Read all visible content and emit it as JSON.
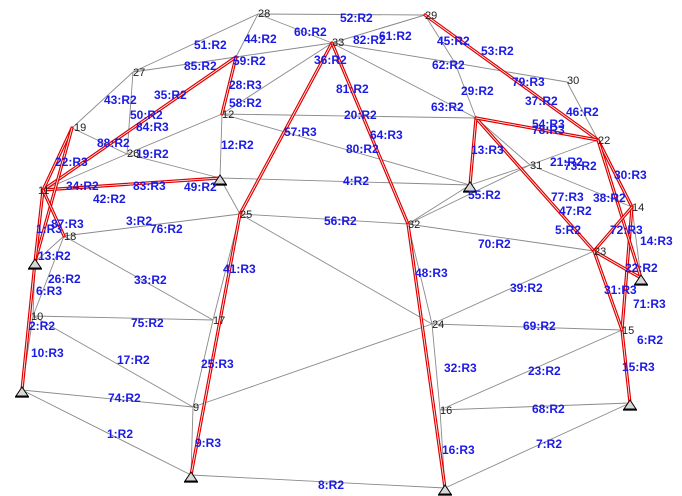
{
  "colors": {
    "member": "#e00000",
    "label": "#1a1ae6",
    "edge": "#8a8a8a",
    "node_text": "#202020"
  },
  "nodes": [
    {
      "id": "28"
    },
    {
      "id": "29"
    },
    {
      "id": "33"
    },
    {
      "id": "30"
    },
    {
      "id": "27"
    },
    {
      "id": "12"
    },
    {
      "id": "19"
    },
    {
      "id": "26"
    },
    {
      "id": "11"
    },
    {
      "id": "18"
    },
    {
      "id": "10"
    },
    {
      "id": "25"
    },
    {
      "id": "17"
    },
    {
      "id": "9"
    },
    {
      "id": "32"
    },
    {
      "id": "24"
    },
    {
      "id": "16"
    },
    {
      "id": "31"
    },
    {
      "id": "22"
    },
    {
      "id": "14"
    },
    {
      "id": "23"
    },
    {
      "id": "15"
    }
  ],
  "support_nodes": [
    "A",
    "B",
    "C",
    "D",
    "E",
    "F",
    "G",
    "H",
    "I",
    "J"
  ],
  "member_labels": [
    "52:R2",
    "60:R2",
    "44:R2",
    "51:R2",
    "61:R2",
    "82:R2",
    "45:R2",
    "53:R2",
    "85:R2",
    "59:R2",
    "36:R2",
    "62:R2",
    "28:R3",
    "35:R2",
    "43:R2",
    "58:R2",
    "81:R2",
    "29:R2",
    "79:R3",
    "37:R2",
    "46:R2",
    "50:R2",
    "84:R3",
    "57:R3",
    "20:R2",
    "63:R2",
    "54:R3",
    "78:R3",
    "88:R2",
    "64:R3",
    "12:R2",
    "19:R2",
    "80:R2",
    "13:R3",
    "22:R3",
    "21:R2",
    "73:R2",
    "30:R3",
    "34:R2",
    "83:R3",
    "49:R2",
    "4:R2",
    "55:R2",
    "42:R2",
    "77:R3",
    "38:R2",
    "47:R2",
    "1:R3",
    "87:R3",
    "3:R2",
    "76:R2",
    "56:R2",
    "5:R2",
    "72:R3",
    "14:R3",
    "13:R2",
    "70:R2",
    "22:R2",
    "26:R2",
    "33:R2",
    "6:R3",
    "41:R3",
    "48:R3",
    "39:R2",
    "31:R3",
    "71:R3",
    "2:R2",
    "75:R2",
    "69:R2",
    "6:R2",
    "10:R3",
    "17:R2",
    "25:R3",
    "32:R3",
    "23:R2",
    "15:R3",
    "74:R2",
    "68:R2",
    "1:R2",
    "9:R3",
    "16:R3",
    "7:R2",
    "8:R2"
  ]
}
